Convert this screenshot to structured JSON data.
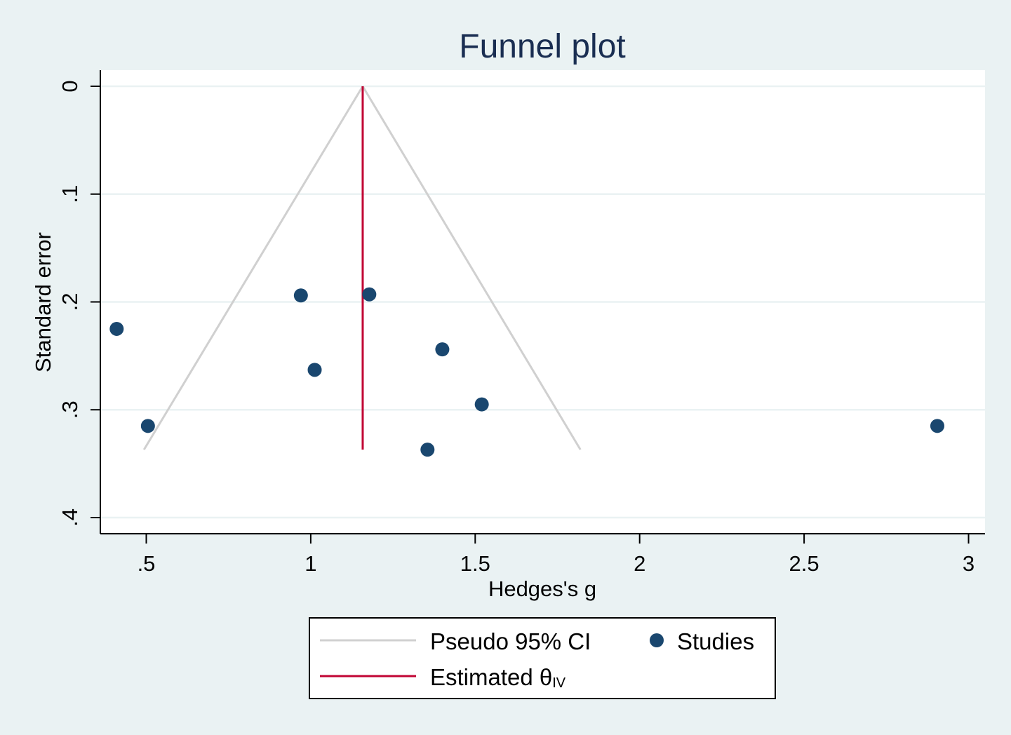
{
  "chart_data": {
    "type": "scatter",
    "title": "Funnel plot",
    "xlabel": "Hedges's g",
    "ylabel": "Standard error",
    "xlim": [
      0.36,
      3.05
    ],
    "ylim": [
      0,
      0.415
    ],
    "y_reversed": true,
    "x_ticks": [
      {
        "value": 0.5,
        "label": ".5"
      },
      {
        "value": 1,
        "label": "1"
      },
      {
        "value": 1.5,
        "label": "1.5"
      },
      {
        "value": 2,
        "label": "2"
      },
      {
        "value": 2.5,
        "label": "2.5"
      },
      {
        "value": 3,
        "label": "3"
      }
    ],
    "y_ticks": [
      {
        "value": 0,
        "label": "0"
      },
      {
        "value": 0.1,
        "label": ".1"
      },
      {
        "value": 0.2,
        "label": ".2"
      },
      {
        "value": 0.3,
        "label": ".3"
      },
      {
        "value": 0.4,
        "label": ".4"
      }
    ],
    "grid": {
      "horizontal": true,
      "vertical": false
    },
    "series": [
      {
        "name": "Studies",
        "kind": "points",
        "color": "#1a476f",
        "x": [
          0.41,
          0.505,
          0.97,
          1.012,
          1.178,
          1.355,
          1.4,
          1.52,
          2.905
        ],
        "y": [
          0.225,
          0.315,
          0.194,
          0.263,
          0.193,
          0.337,
          0.244,
          0.295,
          0.315
        ]
      },
      {
        "name": "Pseudo 95% CI",
        "kind": "line",
        "color": "#d0d0d0",
        "paths": [
          {
            "x": [
              1.158,
              0.493
            ],
            "y": [
              0,
              0.337
            ]
          },
          {
            "x": [
              1.158,
              1.82
            ],
            "y": [
              0,
              0.337
            ]
          }
        ]
      },
      {
        "name": "Estimated θ",
        "name_subscript": "IV",
        "kind": "vline",
        "color": "#c10534",
        "x": 1.158,
        "y_range": [
          0,
          0.337
        ]
      }
    ],
    "legend": {
      "placement": "bottom",
      "entries": [
        {
          "label": "Pseudo 95% CI",
          "symbol": "line",
          "color": "#d0d0d0"
        },
        {
          "label": "Studies",
          "symbol": "dot",
          "color": "#1a476f"
        },
        {
          "label": "Estimated θ",
          "subscript": "IV",
          "symbol": "line",
          "color": "#c10534"
        }
      ]
    },
    "colors": {
      "background": "#eaf2f3",
      "plot_background": "#ffffff",
      "grid": "#eaf2f3",
      "title": "#1a2e52"
    }
  }
}
